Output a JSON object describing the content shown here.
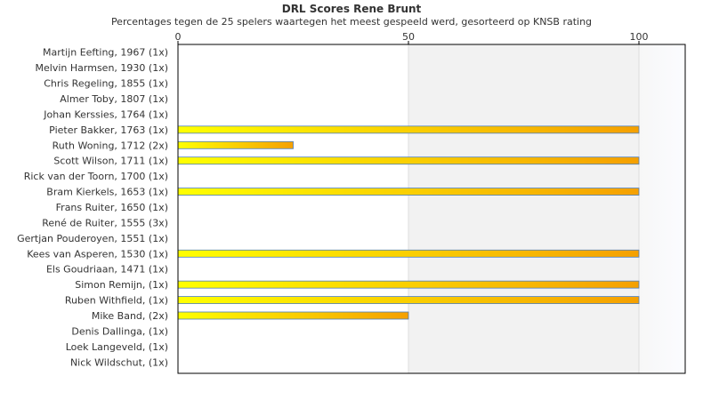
{
  "chart_data": {
    "type": "bar",
    "orientation": "horizontal",
    "title": "DRL Scores Rene Brunt",
    "subtitle": "Percentages tegen de 25 spelers waartegen het meest gespeeld werd, gesorteerd op KNSB rating",
    "xlabel": "",
    "ylabel": "",
    "xlim": [
      0,
      110
    ],
    "x_ticks": [
      0,
      50,
      100
    ],
    "grid": true,
    "colors": {
      "bar_start": "#ffff00",
      "bar_end": "#f5a000",
      "bar_stroke": "#4d7fbf",
      "band": "#f2f2f2",
      "axis": "#000000",
      "gridline": "#dddddd"
    },
    "categories": [
      "Martijn Eefting, 1967 (1x)",
      "Melvin Harmsen, 1930 (1x)",
      "Chris Regeling, 1855 (1x)",
      "Almer Toby, 1807 (1x)",
      "Johan Kerssies, 1764 (1x)",
      "Pieter Bakker, 1763 (1x)",
      "Ruth Woning, 1712 (2x)",
      "Scott Wilson, 1711 (1x)",
      "Rick van der Toorn, 1700 (1x)",
      "Bram Kierkels, 1653 (1x)",
      "Frans Ruiter, 1650 (1x)",
      "René de Ruiter, 1555 (3x)",
      "Gertjan Pouderoyen, 1551 (1x)",
      "Kees van Asperen, 1530 (1x)",
      "Els Goudriaan, 1471 (1x)",
      "Simon Remijn,  (1x)",
      "Ruben Withfield,  (1x)",
      "Mike Band,  (2x)",
      "Denis Dallinga,  (1x)",
      "Loek Langeveld,  (1x)",
      "Nick Wildschut,  (1x)"
    ],
    "values": [
      0,
      0,
      0,
      0,
      0,
      100,
      25,
      100,
      0,
      100,
      0,
      0,
      0,
      100,
      0,
      100,
      100,
      50,
      0,
      0,
      0
    ]
  }
}
